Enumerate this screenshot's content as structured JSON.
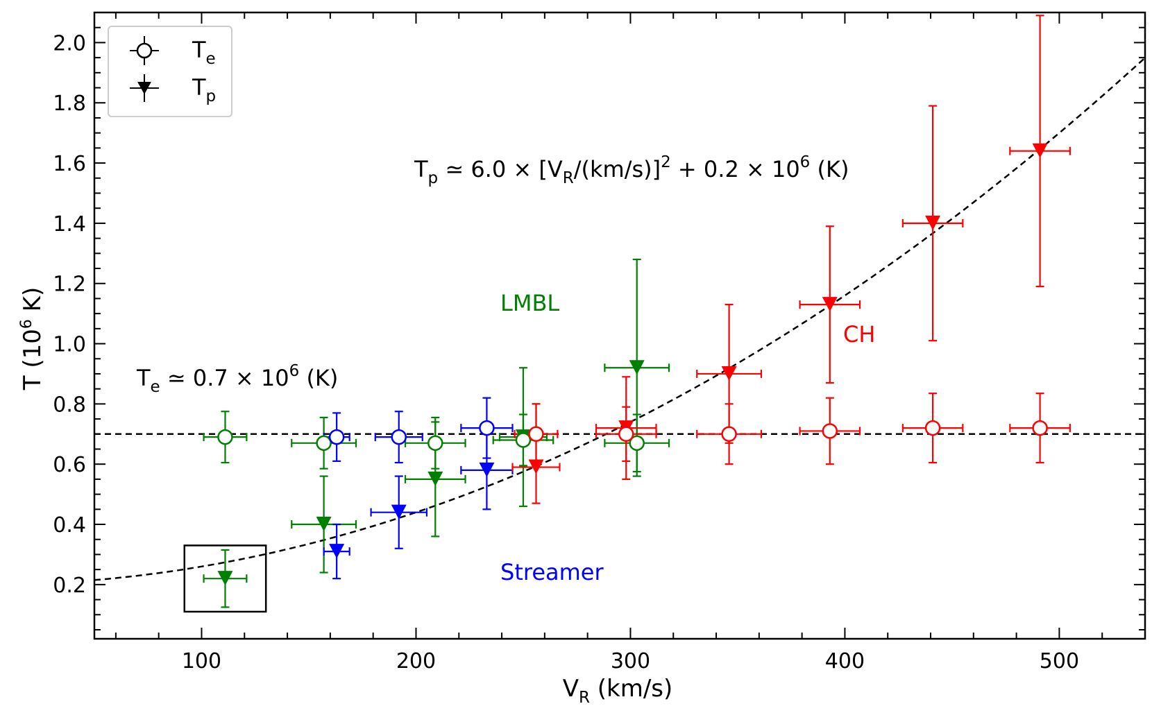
{
  "chart_data": {
    "type": "scatter",
    "title": "",
    "xlabel": {
      "main": "V",
      "sub": "R",
      "rest": " (km/s)"
    },
    "ylabel": "T (10⁶ K)",
    "xlim": [
      50,
      540
    ],
    "ylim": [
      0.02,
      2.1
    ],
    "xticks": [
      100,
      200,
      300,
      400,
      500
    ],
    "yticks": [
      0.2,
      0.4,
      0.6,
      0.8,
      1.0,
      1.2,
      1.4,
      1.6,
      1.8,
      2.0
    ],
    "ytick_labels": [
      "0.2",
      "0.4",
      "0.6",
      "0.8",
      "1.0",
      "1.2",
      "1.4",
      "1.6",
      "1.8",
      "2.0"
    ],
    "legend": {
      "position": "top-left",
      "entries": [
        {
          "main": "T",
          "sub": "e",
          "marker": "open-circle"
        },
        {
          "main": "T",
          "sub": "p",
          "marker": "filled-down-triangle"
        }
      ]
    },
    "colors": {
      "LMBL": "#008000",
      "Streamer": "#0000ff",
      "CH": "#ff0000"
    },
    "series": [
      {
        "name": "LMBL",
        "color": "#008000",
        "Te": [
          {
            "x": 111,
            "y": 0.69,
            "xerr": 10,
            "yerr_lo": 0.085,
            "yerr_hi": 0.085
          },
          {
            "x": 157,
            "y": 0.67,
            "xerr": 15,
            "yerr_lo": 0.085,
            "yerr_hi": 0.085
          },
          {
            "x": 209,
            "y": 0.67,
            "xerr": 14,
            "yerr_lo": 0.085,
            "yerr_hi": 0.085
          },
          {
            "x": 250,
            "y": 0.68,
            "xerr": 14,
            "yerr_lo": 0.085,
            "yerr_hi": 0.085
          },
          {
            "x": 303,
            "y": 0.67,
            "xerr": 15,
            "yerr_lo": 0.095,
            "yerr_hi": 0.095
          }
        ],
        "Tp": [
          {
            "x": 111,
            "y": 0.22,
            "xerr": 10,
            "yerr_lo": 0.095,
            "yerr_hi": 0.095
          },
          {
            "x": 157,
            "y": 0.4,
            "xerr": 15,
            "yerr_lo": 0.16,
            "yerr_hi": 0.16
          },
          {
            "x": 209,
            "y": 0.55,
            "xerr": 14,
            "yerr_lo": 0.19,
            "yerr_hi": 0.19
          },
          {
            "x": 250,
            "y": 0.69,
            "xerr": 11,
            "yerr_lo": 0.23,
            "yerr_hi": 0.23
          },
          {
            "x": 303,
            "y": 0.92,
            "xerr": 15,
            "yerr_lo": 0.36,
            "yerr_hi": 0.36
          }
        ]
      },
      {
        "name": "Streamer",
        "color": "#0000ff",
        "Te": [
          {
            "x": 163,
            "y": 0.69,
            "xerr": 6,
            "yerr_lo": 0.08,
            "yerr_hi": 0.08
          },
          {
            "x": 192,
            "y": 0.69,
            "xerr": 11,
            "yerr_lo": 0.085,
            "yerr_hi": 0.085
          },
          {
            "x": 233,
            "y": 0.72,
            "xerr": 12,
            "yerr_lo": 0.1,
            "yerr_hi": 0.1
          }
        ],
        "Tp": [
          {
            "x": 163,
            "y": 0.31,
            "xerr": 6,
            "yerr_lo": 0.09,
            "yerr_hi": 0.09
          },
          {
            "x": 192,
            "y": 0.44,
            "xerr": 13,
            "yerr_lo": 0.12,
            "yerr_hi": 0.12
          },
          {
            "x": 233,
            "y": 0.58,
            "xerr": 12,
            "yerr_lo": 0.13,
            "yerr_hi": 0.13
          }
        ]
      },
      {
        "name": "CH",
        "color": "#ff0000",
        "Te": [
          {
            "x": 256,
            "y": 0.7,
            "xerr": 10,
            "yerr_lo": 0.1,
            "yerr_hi": 0.1
          },
          {
            "x": 298,
            "y": 0.7,
            "xerr": 14,
            "yerr_lo": 0.09,
            "yerr_hi": 0.09
          },
          {
            "x": 346,
            "y": 0.7,
            "xerr": 15,
            "yerr_lo": 0.1,
            "yerr_hi": 0.1
          },
          {
            "x": 393,
            "y": 0.71,
            "xerr": 14,
            "yerr_lo": 0.11,
            "yerr_hi": 0.11
          },
          {
            "x": 441,
            "y": 0.72,
            "xerr": 14,
            "yerr_lo": 0.115,
            "yerr_hi": 0.115
          },
          {
            "x": 491,
            "y": 0.72,
            "xerr": 14,
            "yerr_lo": 0.115,
            "yerr_hi": 0.115
          }
        ],
        "Tp": [
          {
            "x": 256,
            "y": 0.59,
            "xerr": 11,
            "yerr_lo": 0.12,
            "yerr_hi": 0.21
          },
          {
            "x": 298,
            "y": 0.72,
            "xerr": 14,
            "yerr_lo": 0.17,
            "yerr_hi": 0.17
          },
          {
            "x": 346,
            "y": 0.9,
            "xerr": 15,
            "yerr_lo": 0.23,
            "yerr_hi": 0.23
          },
          {
            "x": 393,
            "y": 1.13,
            "xerr": 14,
            "yerr_lo": 0.26,
            "yerr_hi": 0.26
          },
          {
            "x": 441,
            "y": 1.4,
            "xerr": 14,
            "yerr_lo": 0.39,
            "yerr_hi": 0.39
          },
          {
            "x": 491,
            "y": 1.64,
            "xerr": 14,
            "yerr_lo": 0.45,
            "yerr_hi": 0.45
          }
        ]
      }
    ],
    "fits": [
      {
        "name": "Te-fit",
        "kind": "constant",
        "value": 0.7
      },
      {
        "name": "Tp-fit",
        "kind": "quadratic",
        "a": 6.0,
        "b": 0.2
      }
    ],
    "highlight_box": {
      "x": [
        92,
        130
      ],
      "y": [
        0.11,
        0.33
      ]
    },
    "annotations": {
      "tp_equation": {
        "prefix": "T",
        "prefix_sub": "p",
        "mid": " ≃ 6.0 × [V",
        "mid_sub": "R",
        "after": "/(km/s)]",
        "after_sup": "2",
        "after2": " + 0.2 × 10",
        "after2_sup": "6",
        "end": " (K)"
      },
      "te_equation": {
        "prefix": "T",
        "prefix_sub": "e",
        "mid": " ≃ 0.7 × 10",
        "mid_sup": "6",
        "end": " (K)"
      },
      "region_LMBL": "LMBL",
      "region_CH": "CH",
      "region_Streamer": "Streamer"
    }
  }
}
